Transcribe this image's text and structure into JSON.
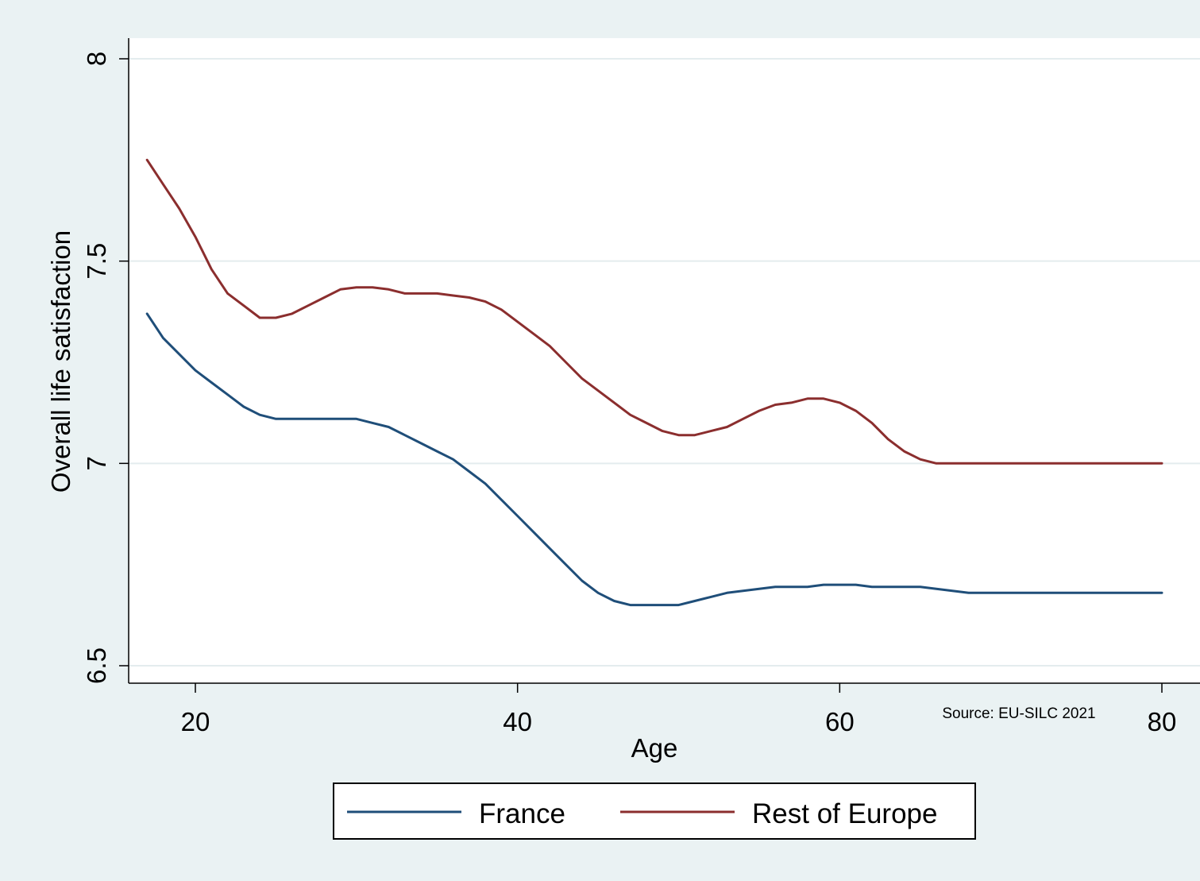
{
  "chart_data": {
    "type": "line",
    "title": "",
    "xlabel": "Age",
    "ylabel": "Overall life satisfaction",
    "xlim": [
      16,
      81
    ],
    "ylim": [
      6.5,
      8
    ],
    "xticks": [
      20,
      40,
      60,
      80
    ],
    "xtick_labels": [
      "20",
      "40",
      "60",
      "80"
    ],
    "yticks": [
      6.5,
      7,
      7.5,
      8
    ],
    "ytick_labels": [
      "6.5",
      "7",
      "7.5",
      "8"
    ],
    "grid": "horizontal",
    "legend": "bottom",
    "source_note": "Source: EU-SILC 2021",
    "x": [
      17,
      18,
      19,
      20,
      21,
      22,
      23,
      24,
      25,
      26,
      27,
      28,
      29,
      30,
      31,
      32,
      33,
      34,
      35,
      36,
      37,
      38,
      39,
      40,
      41,
      42,
      43,
      44,
      45,
      46,
      47,
      48,
      49,
      50,
      51,
      52,
      53,
      54,
      55,
      56,
      57,
      58,
      59,
      60,
      61,
      62,
      63,
      64,
      65,
      66,
      67,
      68,
      69,
      70,
      71,
      72,
      73,
      74,
      75,
      76,
      77,
      78,
      79,
      80
    ],
    "series": [
      {
        "name": "France",
        "color": "#1f4e79",
        "values": [
          7.37,
          7.31,
          7.27,
          7.23,
          7.2,
          7.17,
          7.14,
          7.12,
          7.11,
          7.11,
          7.11,
          7.11,
          7.11,
          7.11,
          7.1,
          7.09,
          7.07,
          7.05,
          7.03,
          7.01,
          6.98,
          6.95,
          6.91,
          6.87,
          6.83,
          6.79,
          6.75,
          6.71,
          6.68,
          6.66,
          6.65,
          6.65,
          6.65,
          6.65,
          6.66,
          6.67,
          6.68,
          6.685,
          6.69,
          6.695,
          6.695,
          6.695,
          6.7,
          6.7,
          6.7,
          6.695,
          6.695,
          6.695,
          6.695,
          6.69,
          6.685,
          6.68,
          6.68,
          6.68,
          6.68,
          6.68,
          6.68,
          6.68,
          6.68,
          6.68,
          6.68,
          6.68,
          6.68,
          6.68
        ]
      },
      {
        "name": "Rest of Europe",
        "color": "#8b2e2e",
        "values": [
          7.75,
          7.69,
          7.63,
          7.56,
          7.48,
          7.42,
          7.39,
          7.36,
          7.36,
          7.37,
          7.39,
          7.41,
          7.43,
          7.435,
          7.435,
          7.43,
          7.42,
          7.42,
          7.42,
          7.415,
          7.41,
          7.4,
          7.38,
          7.35,
          7.32,
          7.29,
          7.25,
          7.21,
          7.18,
          7.15,
          7.12,
          7.1,
          7.08,
          7.07,
          7.07,
          7.08,
          7.09,
          7.11,
          7.13,
          7.145,
          7.15,
          7.16,
          7.16,
          7.15,
          7.13,
          7.1,
          7.06,
          7.03,
          7.01,
          7.0,
          7.0,
          7.0,
          7.0,
          7.0,
          7.0,
          7.0,
          7.0,
          7.0,
          7.0,
          7.0,
          7.0,
          7.0,
          7.0,
          7.0
        ]
      }
    ]
  }
}
